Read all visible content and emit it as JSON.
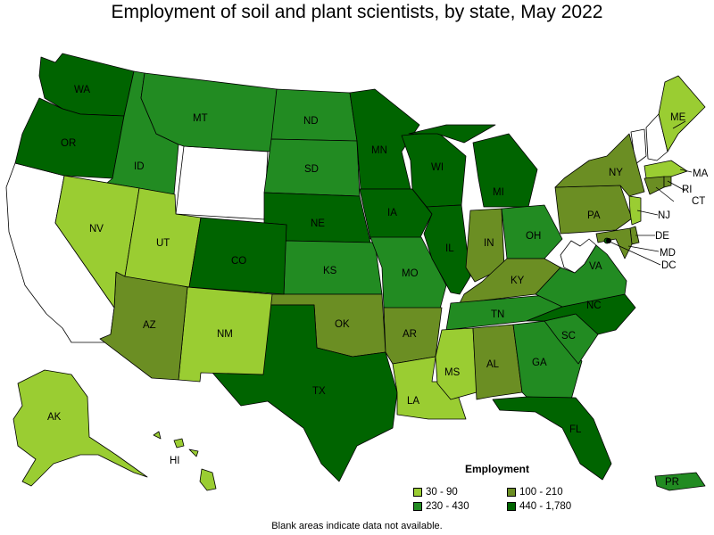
{
  "title": "Employment of soil and plant scientists, by state, May 2022",
  "footnote": "Blank areas indicate data not available.",
  "colors": {
    "c1": "#9acd32",
    "c2": "#228b22",
    "c3": "#6b8e23",
    "c4": "#006400",
    "na": "#ffffff"
  },
  "legend": {
    "title": "Employment",
    "items": [
      {
        "label": "30 - 90",
        "color": "#9acd32"
      },
      {
        "label": "100 - 210",
        "color": "#6b8e23"
      },
      {
        "label": "230 - 430",
        "color": "#228b22"
      },
      {
        "label": "440 - 1,780",
        "color": "#006400"
      }
    ]
  },
  "states": [
    {
      "abbr": "WA",
      "range": "440 - 1,780"
    },
    {
      "abbr": "OR",
      "range": "440 - 1,780"
    },
    {
      "abbr": "ID",
      "range": "230 - 430"
    },
    {
      "abbr": "MT",
      "range": "230 - 430"
    },
    {
      "abbr": "ND",
      "range": "230 - 430"
    },
    {
      "abbr": "SD",
      "range": "230 - 430"
    },
    {
      "abbr": "NE",
      "range": "440 - 1,780"
    },
    {
      "abbr": "KS",
      "range": "230 - 430"
    },
    {
      "abbr": "OK",
      "range": "100 - 210"
    },
    {
      "abbr": "TX",
      "range": "440 - 1,780"
    },
    {
      "abbr": "NM",
      "range": "30 - 90"
    },
    {
      "abbr": "AZ",
      "range": "100 - 210"
    },
    {
      "abbr": "NV",
      "range": "30 - 90"
    },
    {
      "abbr": "UT",
      "range": "30 - 90"
    },
    {
      "abbr": "CO",
      "range": "440 - 1,780"
    },
    {
      "abbr": "MN",
      "range": "440 - 1,780"
    },
    {
      "abbr": "IA",
      "range": "440 - 1,780"
    },
    {
      "abbr": "MO",
      "range": "230 - 430"
    },
    {
      "abbr": "AR",
      "range": "100 - 210"
    },
    {
      "abbr": "LA",
      "range": "30 - 90"
    },
    {
      "abbr": "WI",
      "range": "440 - 1,780"
    },
    {
      "abbr": "IL",
      "range": "440 - 1,780"
    },
    {
      "abbr": "MI",
      "range": "440 - 1,780"
    },
    {
      "abbr": "IN",
      "range": "100 - 210"
    },
    {
      "abbr": "OH",
      "range": "230 - 430"
    },
    {
      "abbr": "KY",
      "range": "100 - 210"
    },
    {
      "abbr": "TN",
      "range": "230 - 430"
    },
    {
      "abbr": "MS",
      "range": "30 - 90"
    },
    {
      "abbr": "AL",
      "range": "100 - 210"
    },
    {
      "abbr": "GA",
      "range": "230 - 430"
    },
    {
      "abbr": "FL",
      "range": "440 - 1,780"
    },
    {
      "abbr": "SC",
      "range": "230 - 430"
    },
    {
      "abbr": "NC",
      "range": "440 - 1,780"
    },
    {
      "abbr": "VA",
      "range": "230 - 430"
    },
    {
      "abbr": "PA",
      "range": "100 - 210"
    },
    {
      "abbr": "NY",
      "range": "100 - 210"
    },
    {
      "abbr": "ME",
      "range": "30 - 90"
    },
    {
      "abbr": "MA",
      "range": "30 - 90"
    },
    {
      "abbr": "CT",
      "range": "100 - 210"
    },
    {
      "abbr": "RI",
      "range": "100 - 210"
    },
    {
      "abbr": "NJ",
      "range": "30 - 90"
    },
    {
      "abbr": "DE",
      "range": "100 - 210"
    },
    {
      "abbr": "MD",
      "range": "100 - 210"
    },
    {
      "abbr": "DC",
      "range": "440 - 1,780"
    },
    {
      "abbr": "AK",
      "range": "30 - 90"
    },
    {
      "abbr": "HI",
      "range": "30 - 90"
    },
    {
      "abbr": "PR",
      "range": "230 - 430"
    }
  ]
}
